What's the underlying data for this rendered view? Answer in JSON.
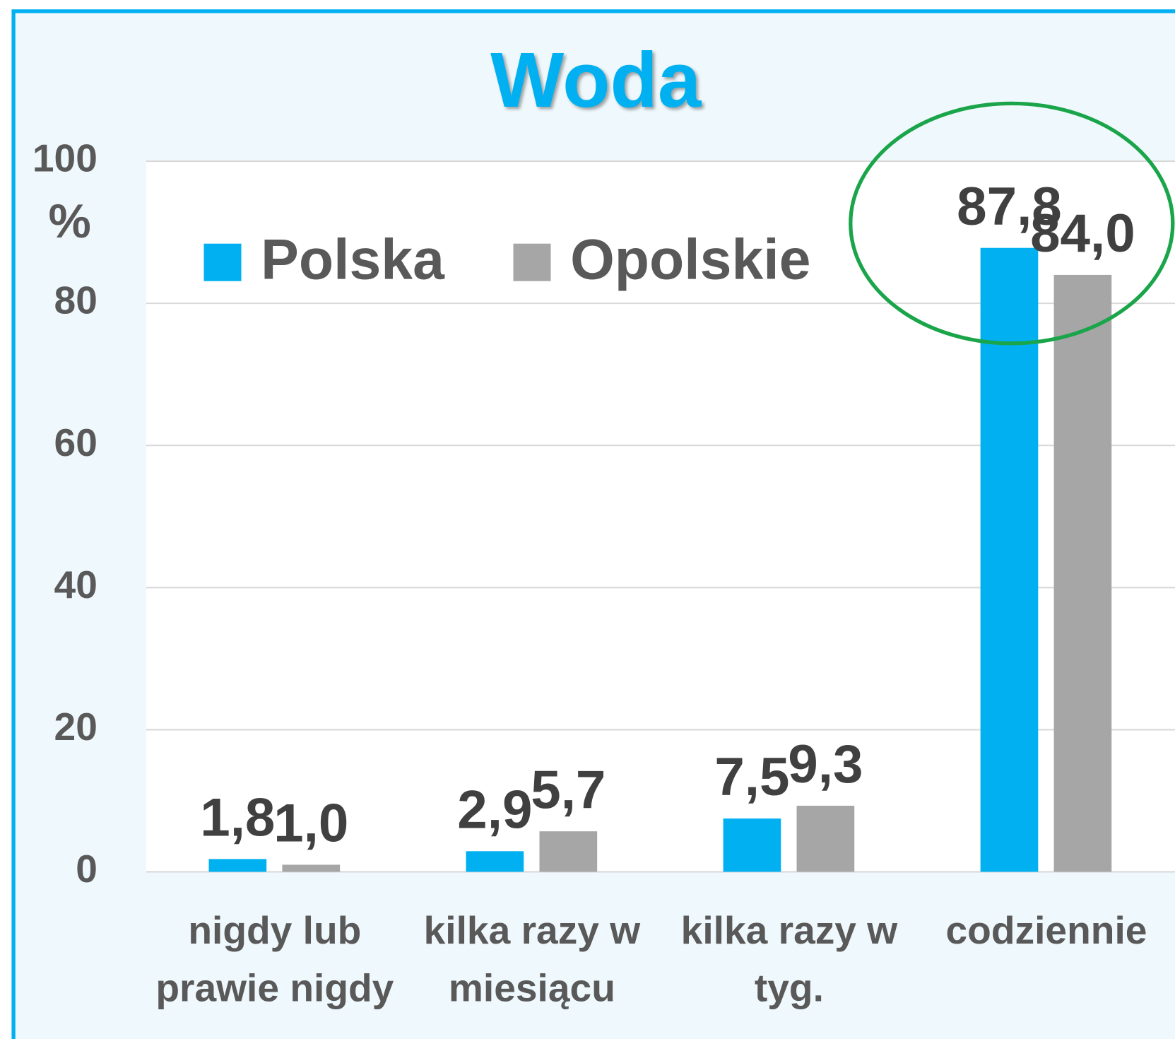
{
  "chart_data": {
    "type": "bar",
    "title": "Woda",
    "y_label": "%",
    "categories": [
      [
        "nigdy lub",
        "prawie nigdy"
      ],
      [
        "kilka razy w",
        "miesiącu"
      ],
      [
        "kilka razy w",
        "tyg."
      ],
      [
        "codziennie"
      ]
    ],
    "series": [
      {
        "name": "Polska",
        "color": "#00b0f0",
        "values": [
          1.8,
          2.9,
          7.5,
          87.8
        ],
        "value_labels": [
          "1,8",
          "2,9",
          "7,5",
          "87,8"
        ]
      },
      {
        "name": "Opolskie",
        "color": "#a6a6a6",
        "values": [
          1.0,
          5.7,
          9.3,
          84.0
        ],
        "value_labels": [
          "1,0",
          "5,7",
          "9,3",
          "84,0"
        ]
      }
    ],
    "ylim": [
      0,
      100
    ],
    "yticks": [
      0,
      20,
      40,
      60,
      80,
      100
    ],
    "grid": true,
    "legend": "top-left"
  }
}
